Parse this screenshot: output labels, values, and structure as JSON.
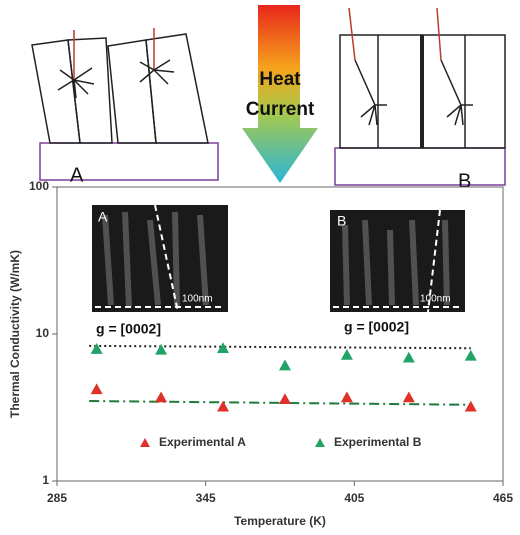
{
  "chart_data": {
    "type": "scatter",
    "schematic": {
      "heat_label": "Heat",
      "current_label": "Current",
      "left_label": "A",
      "right_label": "B"
    },
    "insets": [
      {
        "label": "A",
        "scale_label": "100nm",
        "g_label": "g = [0002]"
      },
      {
        "label": "B",
        "scale_label": "100nm",
        "g_label": "g = [0002]"
      }
    ],
    "xlabel": "Temperature (K)",
    "ylabel": "Thermal Conductivity (W/mK)",
    "xlim": [
      285,
      465
    ],
    "xticks": [
      285,
      345,
      405,
      465
    ],
    "ylim": [
      1,
      100
    ],
    "yticks": [
      1,
      10,
      100
    ],
    "ylog": true,
    "grid": false,
    "series": [
      {
        "name": "Experimental A",
        "color": "#e0302a",
        "x": [
          301,
          327,
          352,
          377,
          402,
          427,
          452
        ],
        "values": [
          4.2,
          3.7,
          3.2,
          3.6,
          3.7,
          3.7,
          3.2
        ]
      },
      {
        "name": "Experimental B",
        "color": "#21a366",
        "x": [
          301,
          327,
          352,
          377,
          402,
          427,
          452
        ],
        "values": [
          7.9,
          7.8,
          8.0,
          6.1,
          7.2,
          6.9,
          7.1
        ]
      }
    ],
    "trendlines": [
      {
        "color": "#222222",
        "dash": "dot",
        "x": [
          298,
          452
        ],
        "values": [
          8.3,
          8.0
        ]
      },
      {
        "color": "#1f7a3a",
        "dash": "dashdot",
        "x": [
          298,
          452
        ],
        "values": [
          3.5,
          3.3
        ]
      }
    ]
  }
}
